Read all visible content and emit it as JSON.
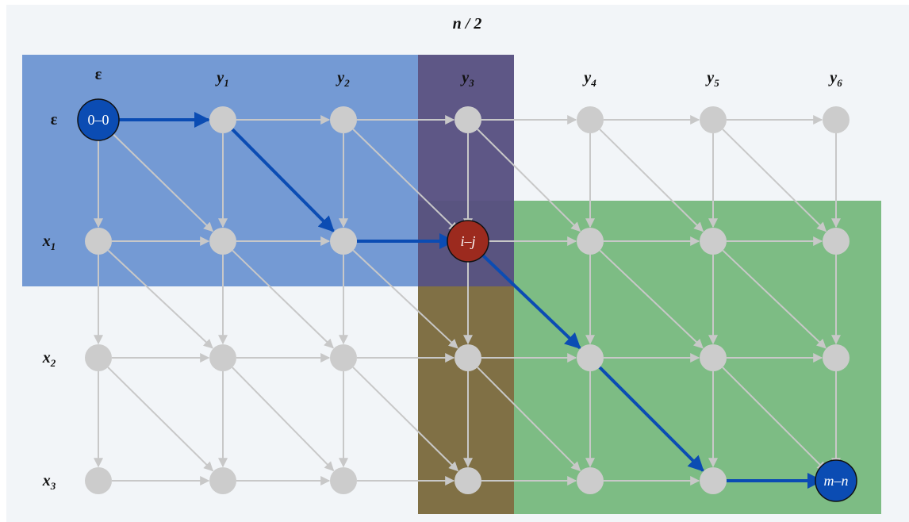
{
  "title": "n / 2",
  "columns": [
    {
      "base": "ε",
      "sub": ""
    },
    {
      "base": "y",
      "sub": "1"
    },
    {
      "base": "y",
      "sub": "2"
    },
    {
      "base": "y",
      "sub": "3"
    },
    {
      "base": "y",
      "sub": "4"
    },
    {
      "base": "y",
      "sub": "5"
    },
    {
      "base": "y",
      "sub": "6"
    }
  ],
  "rows": [
    {
      "base": "ε",
      "sub": ""
    },
    {
      "base": "x",
      "sub": "1"
    },
    {
      "base": "x",
      "sub": "2"
    },
    {
      "base": "x",
      "sub": "3"
    }
  ],
  "special_nodes": [
    {
      "row": 0,
      "col": 0,
      "label": "0–0",
      "color": "#0b4cb3"
    },
    {
      "row": 1,
      "col": 3,
      "label": "i–j",
      "color": "#9c2a1e"
    },
    {
      "row": 3,
      "col": 6,
      "label": "m–n",
      "color": "#0b4cb3"
    }
  ],
  "highlighted_path": [
    [
      0,
      0
    ],
    [
      0,
      1
    ],
    [
      1,
      2
    ],
    [
      1,
      3
    ],
    [
      2,
      4
    ],
    [
      3,
      5
    ],
    [
      3,
      6
    ]
  ],
  "regions": {
    "top_left": {
      "color": "#3f74c4"
    },
    "bottom_right": {
      "color": "#3d9c45"
    },
    "overlap_column": {
      "colors": [
        "#5a4b78",
        "#80633a"
      ]
    }
  },
  "edge_color": "#c8c8c8",
  "path_color": "#0b4cb3",
  "node_color": "#cccccc"
}
